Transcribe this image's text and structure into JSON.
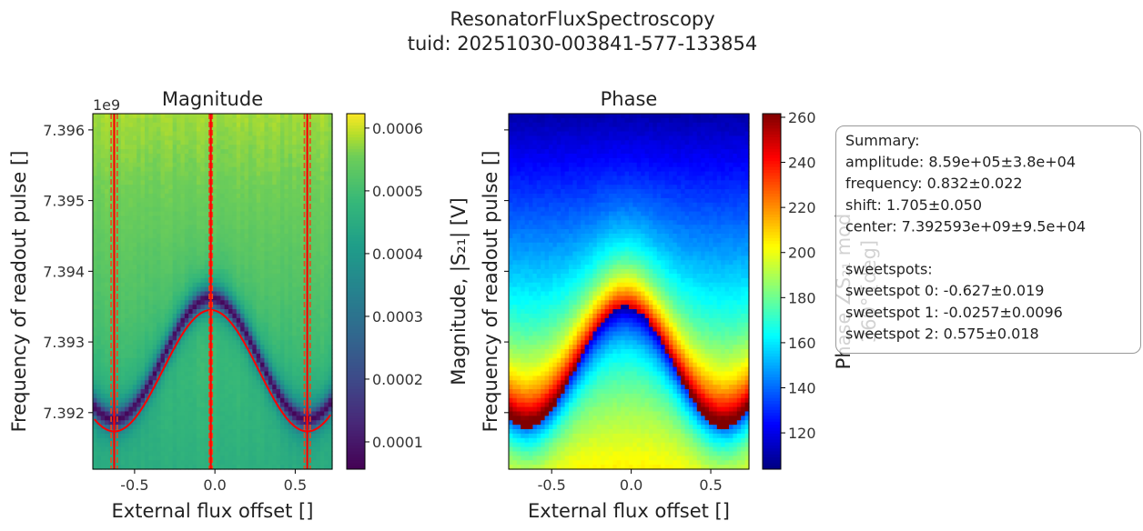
{
  "figure": {
    "title": "ResonatorFluxSpectroscopy",
    "subtitle": "tuid: 20251030-003841-577-133854"
  },
  "summary": {
    "lines": [
      "Summary:",
      "amplitude: 8.59e+05±3.8e+04",
      "frequency: 0.832±0.022",
      "shift: 1.705±0.050",
      "center: 7.392593e+09±9.5e+04",
      "",
      "sweetspots:",
      "sweetspot 0: -0.627±0.019",
      "sweetspot 1: -0.0257±0.0096",
      "sweetspot 2: 0.575±0.018"
    ]
  },
  "chart_data": [
    {
      "type": "heatmap",
      "title": "Magnitude",
      "xlabel": "External flux offset []",
      "ylabel": "Frequency of readout pulse []",
      "y_offset_text": "1e9",
      "xlim": [
        -0.76,
        0.73
      ],
      "ylim": [
        7391200000.0,
        7396230000.0
      ],
      "xticks": [
        -0.5,
        0.0,
        0.5
      ],
      "xtick_labels": [
        "-0.5",
        "0.0",
        "0.5"
      ],
      "yticks": [
        7392000000.0,
        7393000000.0,
        7394000000.0,
        7395000000.0,
        7396000000.0
      ],
      "ytick_labels": [
        "7.392",
        "7.393",
        "7.394",
        "7.395",
        "7.396"
      ],
      "colormap": "viridis",
      "colorbar": {
        "label": "Magnitude, |S₂₁| [V]",
        "range": [
          5.65e-05,
          0.000623
        ],
        "ticks": [
          0.0001,
          0.0002,
          0.0003,
          0.0004,
          0.0005,
          0.0006
        ],
        "tick_labels": [
          "0.0001",
          "0.0002",
          "0.0003",
          "0.0004",
          "0.0005",
          "0.0006"
        ]
      },
      "fit": {
        "model": "center + amplitude*sin(2π·frequency·x + shift)",
        "amplitude": 859000,
        "frequency": 0.832,
        "shift": 1.705,
        "center": 7392593000,
        "color": "#ff0000"
      },
      "sweetspots": [
        {
          "value": -0.627,
          "error": 0.019
        },
        {
          "value": -0.0257,
          "error": 0.0096
        },
        {
          "value": 0.575,
          "error": 0.018
        }
      ],
      "sweetspot_color": "#ff0000",
      "sweetspot_error_color": "#e8481c"
    },
    {
      "type": "heatmap",
      "title": "Phase",
      "xlabel": "External flux offset []",
      "ylabel": "Frequency of readout pulse []",
      "xlim": [
        -0.77,
        0.74
      ],
      "ylim": [
        7391200000.0,
        7396230000.0
      ],
      "xticks": [
        -0.5,
        0.0,
        0.5
      ],
      "xtick_labels": [
        "-0.5",
        "0.0",
        "0.5"
      ],
      "yticks": [
        7392000000.0,
        7393000000.0,
        7394000000.0,
        7395000000.0,
        7396000000.0
      ],
      "colormap": "jet",
      "colorbar": {
        "label_lines": [
          "Phase ∠S₂₁ mod",
          "360° [deg]"
        ],
        "range": [
          103.9,
          261.6
        ],
        "ticks": [
          120,
          140,
          160,
          180,
          200,
          220,
          240,
          260
        ],
        "tick_labels": [
          "120",
          "140",
          "160",
          "180",
          "200",
          "220",
          "240",
          "260"
        ]
      }
    }
  ]
}
